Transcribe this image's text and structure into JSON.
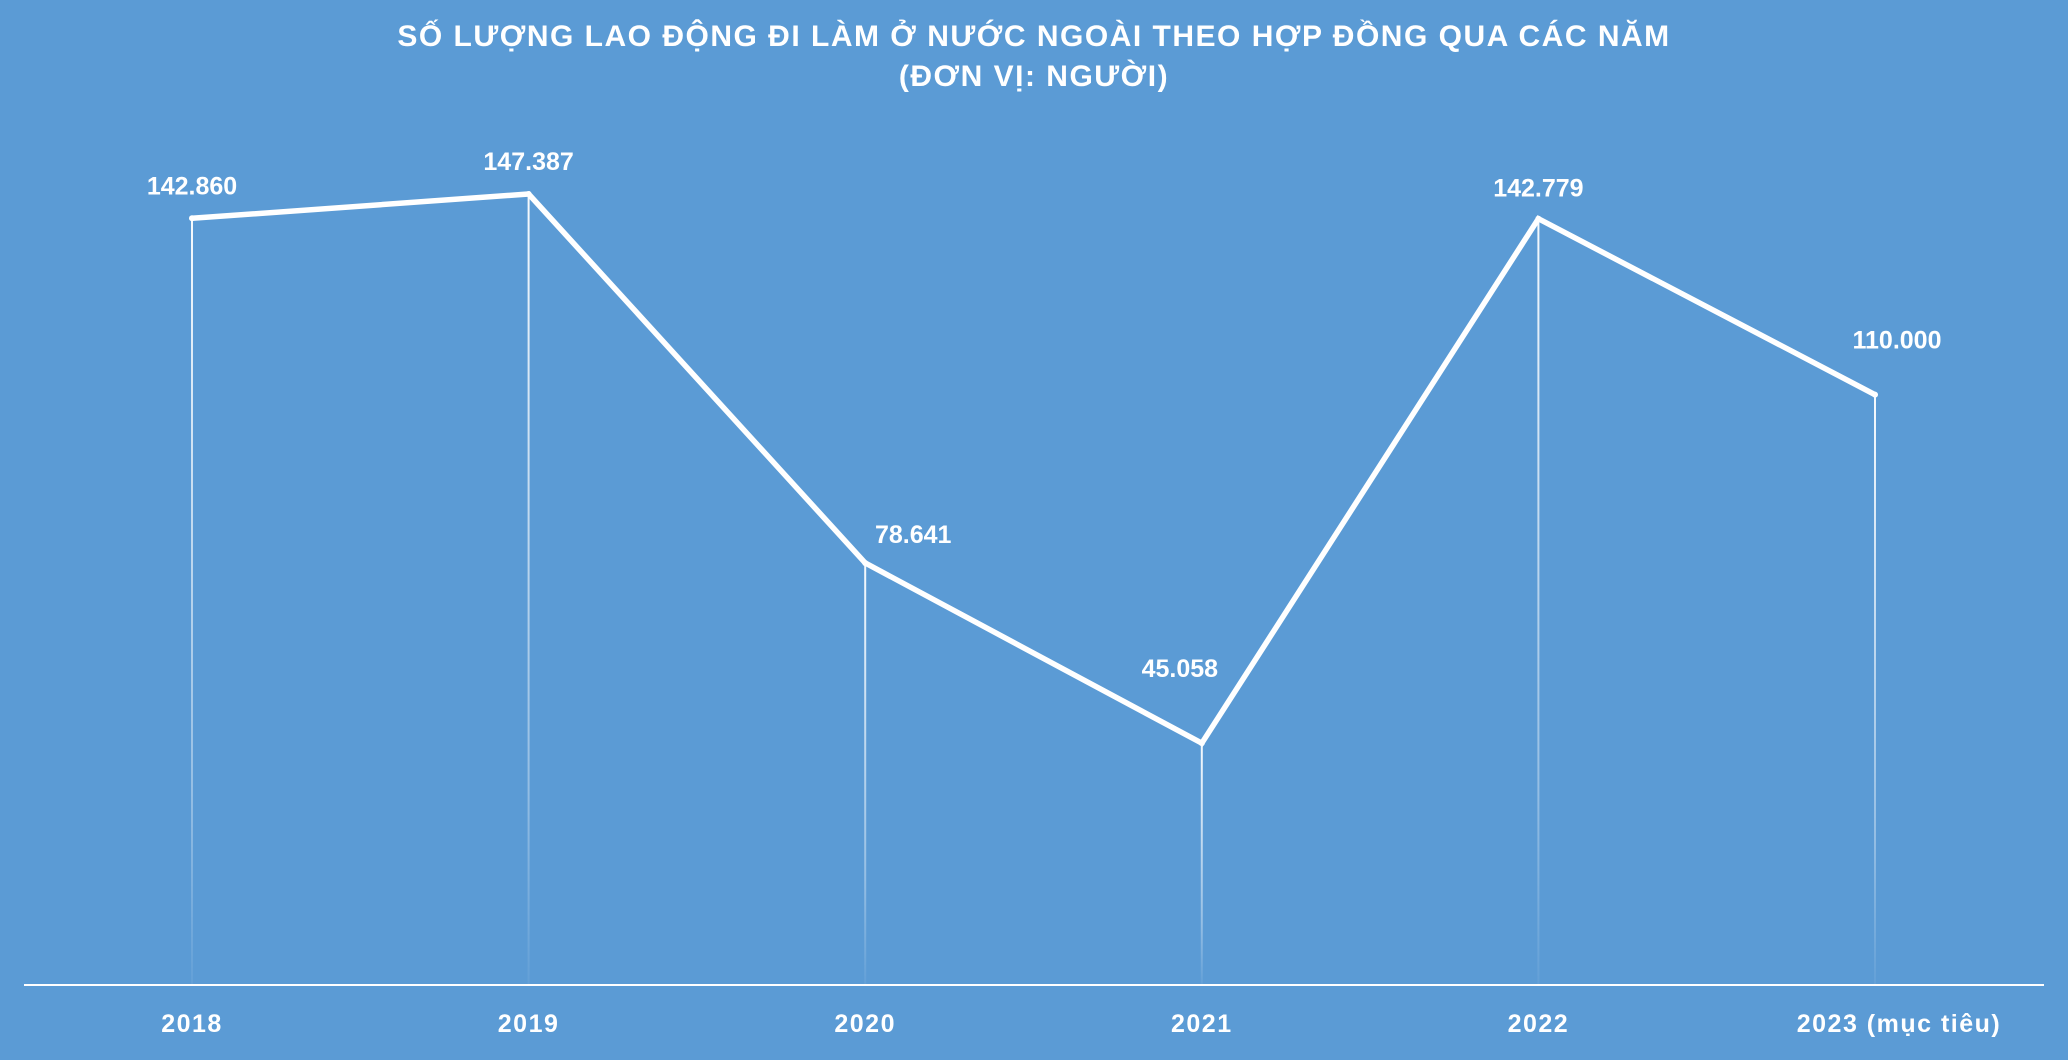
{
  "chart_data": {
    "type": "line",
    "title": "SỐ LƯỢNG LAO ĐỘNG ĐI LÀM Ở NƯỚC NGOÀI THEO HỢP ĐỒNG QUA CÁC NĂM",
    "subtitle": "(ĐƠN VỊ: NGƯỜI)",
    "categories": [
      "2018",
      "2019",
      "2020",
      "2021",
      "2022",
      "2023 (mục tiêu)"
    ],
    "values": [
      142860,
      147387,
      78641,
      45058,
      142779,
      110000
    ],
    "value_labels": [
      "142.860",
      "147.387",
      "78.641",
      "45.058",
      "142.779",
      "110.000"
    ],
    "xlabel": "",
    "ylabel": "",
    "ylim": [
      0,
      160000
    ],
    "grid": false,
    "legend": "none",
    "drop_lines": true,
    "colors": {
      "background": "#5b9bd5",
      "line": "#ffffff",
      "text": "#ffffff"
    }
  }
}
